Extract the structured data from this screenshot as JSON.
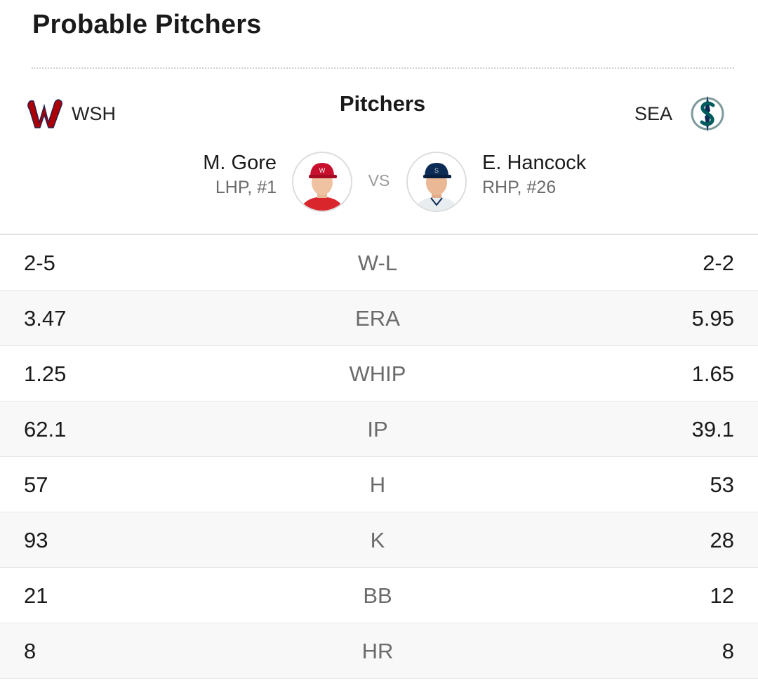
{
  "section": {
    "title": "Probable Pitchers"
  },
  "teams": {
    "away": {
      "abbr": "WSH",
      "logo_icon": "nationals-w-logo-icon",
      "color": "#ab0003"
    },
    "home": {
      "abbr": "SEA",
      "logo_icon": "mariners-compass-logo-icon",
      "color": "#005c5c"
    }
  },
  "column_title": "Pitchers",
  "vs_label": "VS",
  "pitchers": {
    "away": {
      "name": "M. Gore",
      "detail": "LHP, #1",
      "photo_icon": "headshot-icon"
    },
    "home": {
      "name": "E. Hancock",
      "detail": "RHP, #26",
      "photo_icon": "headshot-icon"
    }
  },
  "stats": [
    {
      "label": "W-L",
      "away": "2-5",
      "home": "2-2"
    },
    {
      "label": "ERA",
      "away": "3.47",
      "home": "5.95"
    },
    {
      "label": "WHIP",
      "away": "1.25",
      "home": "1.65"
    },
    {
      "label": "IP",
      "away": "62.1",
      "home": "39.1"
    },
    {
      "label": "H",
      "away": "57",
      "home": "53"
    },
    {
      "label": "K",
      "away": "93",
      "home": "28"
    },
    {
      "label": "BB",
      "away": "21",
      "home": "12"
    },
    {
      "label": "HR",
      "away": "8",
      "home": "8"
    }
  ]
}
